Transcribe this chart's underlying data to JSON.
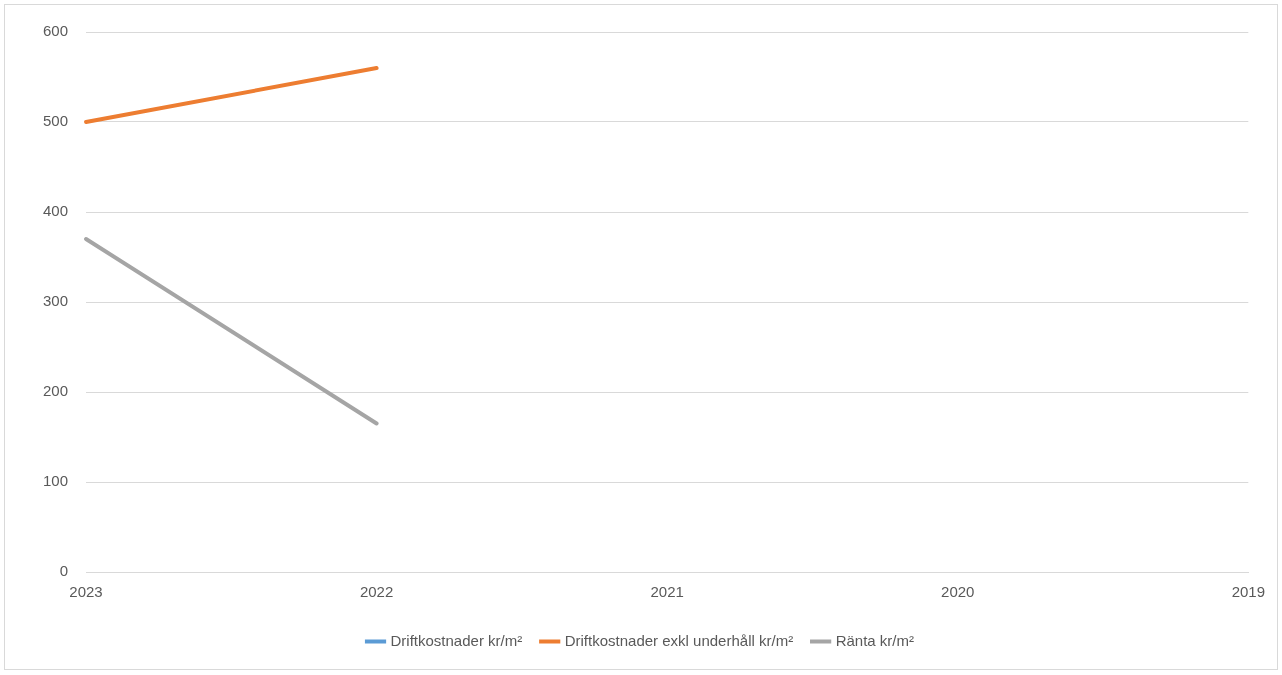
{
  "chart_data": {
    "type": "line",
    "categories": [
      "2023",
      "2022",
      "2021",
      "2020",
      "2019"
    ],
    "series": [
      {
        "name": "Driftkostnader kr/m²",
        "color": "#5b9bd5",
        "values": [
          null,
          null,
          null,
          null,
          null
        ]
      },
      {
        "name": "Driftkostnader exkl underhåll kr/m²",
        "color": "#ed7d31",
        "values": [
          500,
          560,
          null,
          null,
          null
        ]
      },
      {
        "name": "Ränta kr/m²",
        "color": "#a5a5a5",
        "values": [
          370,
          165,
          null,
          null,
          null
        ]
      }
    ],
    "ylim": [
      0,
      600
    ],
    "yticks": [
      0,
      100,
      200,
      300,
      400,
      500,
      600
    ],
    "grid": "y",
    "legend": "bottom",
    "marker": "none",
    "line_style": "solid"
  }
}
